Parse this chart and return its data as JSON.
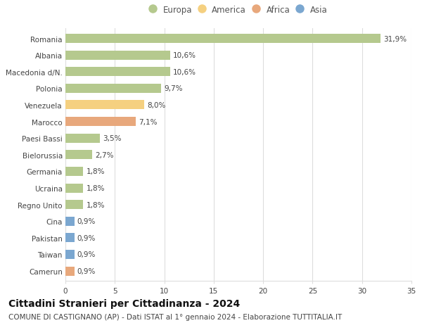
{
  "countries": [
    "Romania",
    "Albania",
    "Macedonia d/N.",
    "Polonia",
    "Venezuela",
    "Marocco",
    "Paesi Bassi",
    "Bielorussia",
    "Germania",
    "Ucraina",
    "Regno Unito",
    "Cina",
    "Pakistan",
    "Taiwan",
    "Camerun"
  ],
  "values": [
    31.9,
    10.6,
    10.6,
    9.7,
    8.0,
    7.1,
    3.5,
    2.7,
    1.8,
    1.8,
    1.8,
    0.9,
    0.9,
    0.9,
    0.9
  ],
  "labels": [
    "31,9%",
    "10,6%",
    "10,6%",
    "9,7%",
    "8,0%",
    "7,1%",
    "3,5%",
    "2,7%",
    "1,8%",
    "1,8%",
    "1,8%",
    "0,9%",
    "0,9%",
    "0,9%",
    "0,9%"
  ],
  "continents": [
    "Europa",
    "Europa",
    "Europa",
    "Europa",
    "America",
    "Africa",
    "Europa",
    "Europa",
    "Europa",
    "Europa",
    "Europa",
    "Asia",
    "Asia",
    "Asia",
    "Africa"
  ],
  "continent_colors": {
    "Europa": "#b5c98e",
    "America": "#f5d080",
    "Africa": "#e8a87c",
    "Asia": "#7ba7d0"
  },
  "legend_order": [
    "Europa",
    "America",
    "Africa",
    "Asia"
  ],
  "title": "Cittadini Stranieri per Cittadinanza - 2024",
  "subtitle": "COMUNE DI CASTIGNANO (AP) - Dati ISTAT al 1° gennaio 2024 - Elaborazione TUTTITALIA.IT",
  "xlim": [
    0,
    35
  ],
  "xticks": [
    0,
    5,
    10,
    15,
    20,
    25,
    30,
    35
  ],
  "background_color": "#ffffff",
  "grid_color": "#dddddd",
  "bar_height": 0.55,
  "title_fontsize": 10,
  "subtitle_fontsize": 7.5,
  "label_fontsize": 7.5,
  "tick_fontsize": 7.5,
  "legend_fontsize": 8.5
}
